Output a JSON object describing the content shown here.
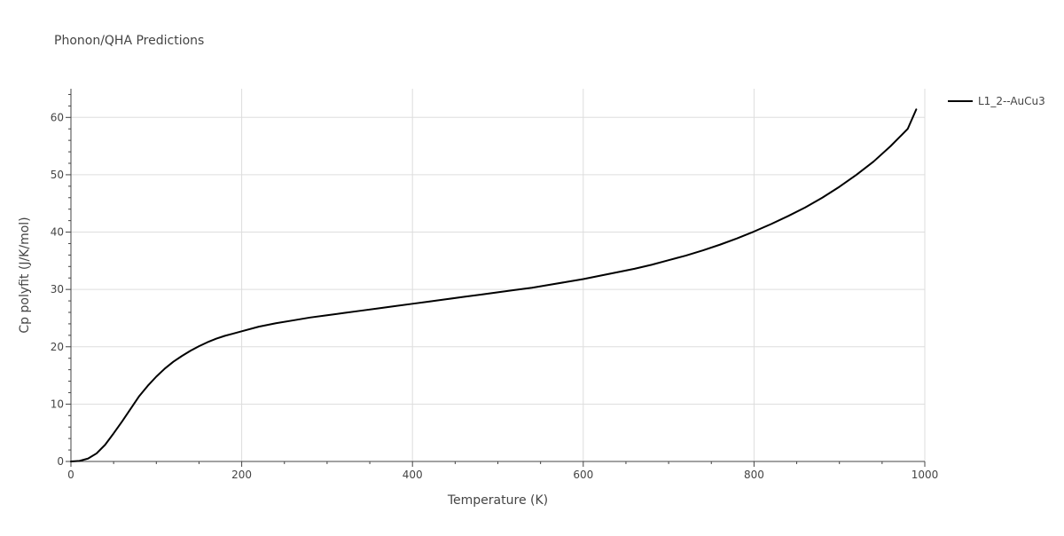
{
  "chart_data": {
    "type": "line",
    "title": "Phonon/QHA Predictions",
    "xlabel": "Temperature (K)",
    "ylabel": "Cp polyfit (J/K/mol)",
    "xlim": [
      0,
      1000
    ],
    "ylim": [
      0,
      65
    ],
    "xticks": [
      0,
      200,
      400,
      600,
      800,
      1000
    ],
    "yticks": [
      0,
      10,
      20,
      30,
      40,
      50,
      60
    ],
    "grid": true,
    "legend_position": "top-right",
    "series": [
      {
        "name": "L1_2--AuCu3",
        "color": "#000000",
        "x": [
          0,
          10,
          20,
          30,
          40,
          50,
          60,
          70,
          80,
          90,
          100,
          110,
          120,
          130,
          140,
          150,
          160,
          170,
          180,
          190,
          200,
          220,
          240,
          260,
          280,
          300,
          320,
          340,
          360,
          380,
          400,
          420,
          440,
          460,
          480,
          500,
          520,
          540,
          560,
          580,
          600,
          620,
          640,
          660,
          680,
          700,
          720,
          740,
          760,
          780,
          800,
          820,
          840,
          860,
          880,
          900,
          920,
          940,
          960,
          980,
          990
        ],
        "y": [
          0,
          0.1,
          0.5,
          1.4,
          2.9,
          4.9,
          7.0,
          9.2,
          11.4,
          13.2,
          14.8,
          16.2,
          17.4,
          18.4,
          19.3,
          20.1,
          20.8,
          21.4,
          21.9,
          22.3,
          22.7,
          23.5,
          24.1,
          24.6,
          25.1,
          25.5,
          25.9,
          26.3,
          26.7,
          27.1,
          27.5,
          27.9,
          28.3,
          28.7,
          29.1,
          29.5,
          29.9,
          30.3,
          30.8,
          31.3,
          31.8,
          32.4,
          33.0,
          33.6,
          34.3,
          35.1,
          35.9,
          36.8,
          37.8,
          38.9,
          40.1,
          41.4,
          42.8,
          44.3,
          46.0,
          47.9,
          50.0,
          52.3,
          55.0,
          58.0,
          61.4
        ]
      }
    ]
  }
}
